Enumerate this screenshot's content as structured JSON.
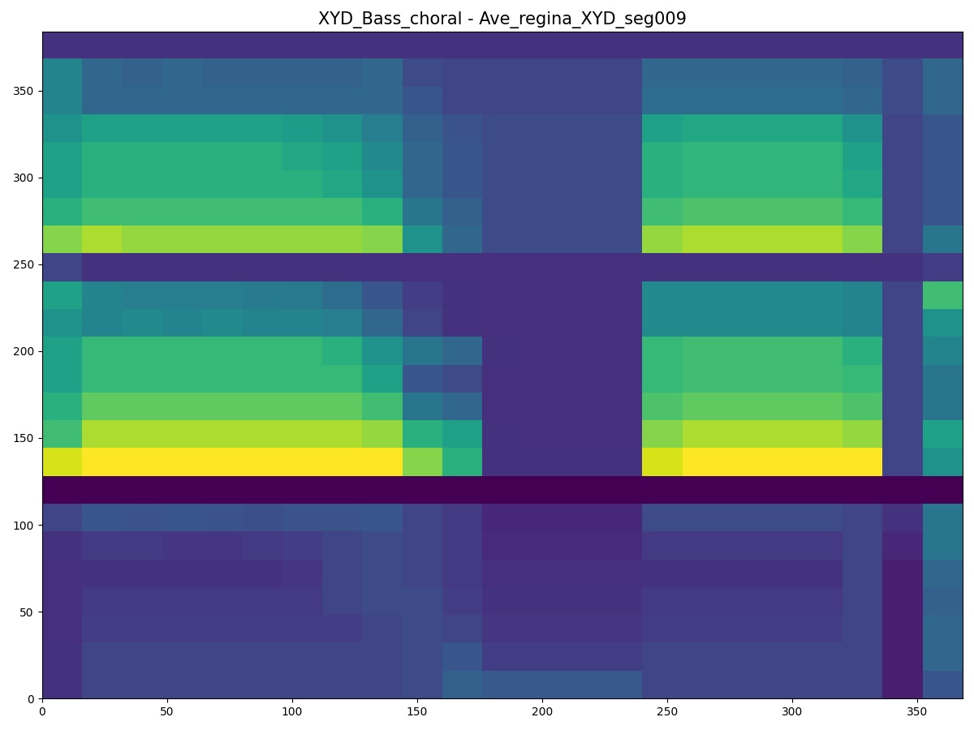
{
  "chart_data": {
    "type": "heatmap",
    "title": "XYD_Bass_choral - Ave_regina_XYD_seg009",
    "color": "viridis",
    "xlim": [
      0,
      368
    ],
    "ylim": [
      0,
      384
    ],
    "xticks": [
      0,
      50,
      100,
      150,
      200,
      250,
      300,
      350
    ],
    "yticks": [
      0,
      50,
      100,
      150,
      200,
      250,
      300,
      350
    ],
    "cells": [
      [
        0.15,
        0.2,
        0.2,
        0.2,
        0.2,
        0.2,
        0.2,
        0.2,
        0.2,
        0.22,
        0.28,
        0.26,
        0.26,
        0.26,
        0.26,
        0.2,
        0.2,
        0.2,
        0.2,
        0.2,
        0.2,
        0.1,
        0.25
      ],
      [
        0.15,
        0.2,
        0.2,
        0.2,
        0.2,
        0.2,
        0.2,
        0.2,
        0.2,
        0.22,
        0.25,
        0.18,
        0.18,
        0.18,
        0.18,
        0.2,
        0.2,
        0.2,
        0.2,
        0.2,
        0.2,
        0.1,
        0.3
      ],
      [
        0.14,
        0.18,
        0.18,
        0.18,
        0.18,
        0.18,
        0.18,
        0.18,
        0.2,
        0.22,
        0.2,
        0.16,
        0.16,
        0.16,
        0.16,
        0.18,
        0.18,
        0.18,
        0.18,
        0.18,
        0.2,
        0.1,
        0.3
      ],
      [
        0.14,
        0.17,
        0.17,
        0.17,
        0.17,
        0.17,
        0.17,
        0.2,
        0.22,
        0.22,
        0.18,
        0.15,
        0.15,
        0.15,
        0.15,
        0.17,
        0.17,
        0.17,
        0.17,
        0.17,
        0.2,
        0.1,
        0.28
      ],
      [
        0.14,
        0.15,
        0.15,
        0.15,
        0.15,
        0.15,
        0.16,
        0.2,
        0.22,
        0.2,
        0.17,
        0.14,
        0.14,
        0.14,
        0.14,
        0.15,
        0.15,
        0.15,
        0.15,
        0.15,
        0.2,
        0.1,
        0.3
      ],
      [
        0.15,
        0.17,
        0.17,
        0.16,
        0.16,
        0.17,
        0.18,
        0.2,
        0.22,
        0.2,
        0.17,
        0.13,
        0.13,
        0.13,
        0.13,
        0.17,
        0.17,
        0.17,
        0.17,
        0.17,
        0.2,
        0.12,
        0.35
      ],
      [
        0.2,
        0.25,
        0.24,
        0.25,
        0.24,
        0.23,
        0.24,
        0.24,
        0.25,
        0.2,
        0.17,
        0.12,
        0.12,
        0.12,
        0.12,
        0.22,
        0.22,
        0.22,
        0.22,
        0.22,
        0.2,
        0.15,
        0.35
      ],
      [
        0.03,
        0.03,
        0.03,
        0.03,
        0.03,
        0.03,
        0.03,
        0.03,
        0.03,
        0.03,
        0.03,
        0.03,
        0.03,
        0.03,
        0.03,
        0.03,
        0.03,
        0.03,
        0.03,
        0.03,
        0.03,
        0.03,
        0.03
      ],
      [
        0.8,
        0.85,
        0.85,
        0.85,
        0.85,
        0.85,
        0.85,
        0.85,
        0.85,
        0.7,
        0.55,
        0.15,
        0.15,
        0.15,
        0.15,
        0.8,
        0.85,
        0.85,
        0.85,
        0.85,
        0.85,
        0.2,
        0.45
      ],
      [
        0.6,
        0.75,
        0.75,
        0.75,
        0.75,
        0.75,
        0.75,
        0.75,
        0.72,
        0.55,
        0.5,
        0.15,
        0.14,
        0.14,
        0.14,
        0.7,
        0.75,
        0.75,
        0.75,
        0.75,
        0.72,
        0.2,
        0.5
      ],
      [
        0.55,
        0.65,
        0.65,
        0.65,
        0.65,
        0.65,
        0.65,
        0.65,
        0.6,
        0.35,
        0.3,
        0.14,
        0.14,
        0.14,
        0.14,
        0.62,
        0.65,
        0.65,
        0.65,
        0.65,
        0.62,
        0.2,
        0.35
      ],
      [
        0.5,
        0.58,
        0.58,
        0.58,
        0.58,
        0.58,
        0.58,
        0.58,
        0.5,
        0.25,
        0.22,
        0.14,
        0.14,
        0.14,
        0.14,
        0.58,
        0.6,
        0.6,
        0.6,
        0.6,
        0.58,
        0.2,
        0.35
      ],
      [
        0.5,
        0.58,
        0.58,
        0.58,
        0.58,
        0.58,
        0.58,
        0.55,
        0.45,
        0.35,
        0.3,
        0.15,
        0.14,
        0.14,
        0.14,
        0.58,
        0.6,
        0.6,
        0.6,
        0.6,
        0.55,
        0.2,
        0.4
      ],
      [
        0.45,
        0.4,
        0.42,
        0.4,
        0.42,
        0.4,
        0.4,
        0.38,
        0.3,
        0.2,
        0.15,
        0.14,
        0.14,
        0.14,
        0.14,
        0.42,
        0.42,
        0.42,
        0.42,
        0.42,
        0.4,
        0.2,
        0.45
      ],
      [
        0.5,
        0.4,
        0.38,
        0.38,
        0.38,
        0.37,
        0.36,
        0.32,
        0.25,
        0.18,
        0.15,
        0.14,
        0.14,
        0.14,
        0.14,
        0.42,
        0.42,
        0.42,
        0.42,
        0.42,
        0.4,
        0.2,
        0.6
      ],
      [
        0.2,
        0.15,
        0.15,
        0.15,
        0.15,
        0.15,
        0.15,
        0.15,
        0.15,
        0.14,
        0.14,
        0.14,
        0.14,
        0.14,
        0.14,
        0.15,
        0.15,
        0.15,
        0.15,
        0.15,
        0.15,
        0.15,
        0.18
      ],
      [
        0.7,
        0.75,
        0.72,
        0.72,
        0.72,
        0.72,
        0.72,
        0.72,
        0.7,
        0.45,
        0.3,
        0.22,
        0.22,
        0.22,
        0.22,
        0.72,
        0.75,
        0.75,
        0.75,
        0.75,
        0.7,
        0.2,
        0.35
      ],
      [
        0.55,
        0.6,
        0.6,
        0.6,
        0.6,
        0.6,
        0.6,
        0.6,
        0.55,
        0.35,
        0.28,
        0.22,
        0.22,
        0.22,
        0.22,
        0.6,
        0.62,
        0.62,
        0.62,
        0.62,
        0.58,
        0.2,
        0.25
      ],
      [
        0.5,
        0.55,
        0.55,
        0.55,
        0.55,
        0.55,
        0.55,
        0.52,
        0.45,
        0.3,
        0.25,
        0.22,
        0.22,
        0.22,
        0.22,
        0.55,
        0.57,
        0.57,
        0.57,
        0.57,
        0.52,
        0.2,
        0.25
      ],
      [
        0.5,
        0.55,
        0.55,
        0.55,
        0.55,
        0.55,
        0.52,
        0.5,
        0.42,
        0.3,
        0.25,
        0.22,
        0.22,
        0.22,
        0.22,
        0.55,
        0.57,
        0.57,
        0.57,
        0.57,
        0.5,
        0.2,
        0.25
      ],
      [
        0.45,
        0.5,
        0.5,
        0.5,
        0.5,
        0.5,
        0.48,
        0.45,
        0.38,
        0.28,
        0.24,
        0.22,
        0.22,
        0.22,
        0.22,
        0.5,
        0.52,
        0.52,
        0.52,
        0.52,
        0.45,
        0.2,
        0.25
      ],
      [
        0.4,
        0.3,
        0.3,
        0.3,
        0.3,
        0.3,
        0.3,
        0.3,
        0.3,
        0.25,
        0.2,
        0.2,
        0.2,
        0.2,
        0.2,
        0.32,
        0.32,
        0.32,
        0.32,
        0.32,
        0.3,
        0.22,
        0.3
      ],
      [
        0.4,
        0.3,
        0.28,
        0.3,
        0.28,
        0.28,
        0.28,
        0.28,
        0.3,
        0.22,
        0.2,
        0.2,
        0.2,
        0.2,
        0.2,
        0.3,
        0.3,
        0.3,
        0.3,
        0.3,
        0.28,
        0.22,
        0.3
      ],
      [
        0.15,
        0.15,
        0.15,
        0.15,
        0.15,
        0.15,
        0.15,
        0.15,
        0.15,
        0.15,
        0.15,
        0.15,
        0.15,
        0.15,
        0.15,
        0.15,
        0.15,
        0.15,
        0.15,
        0.15,
        0.15,
        0.15,
        0.15
      ]
    ]
  }
}
